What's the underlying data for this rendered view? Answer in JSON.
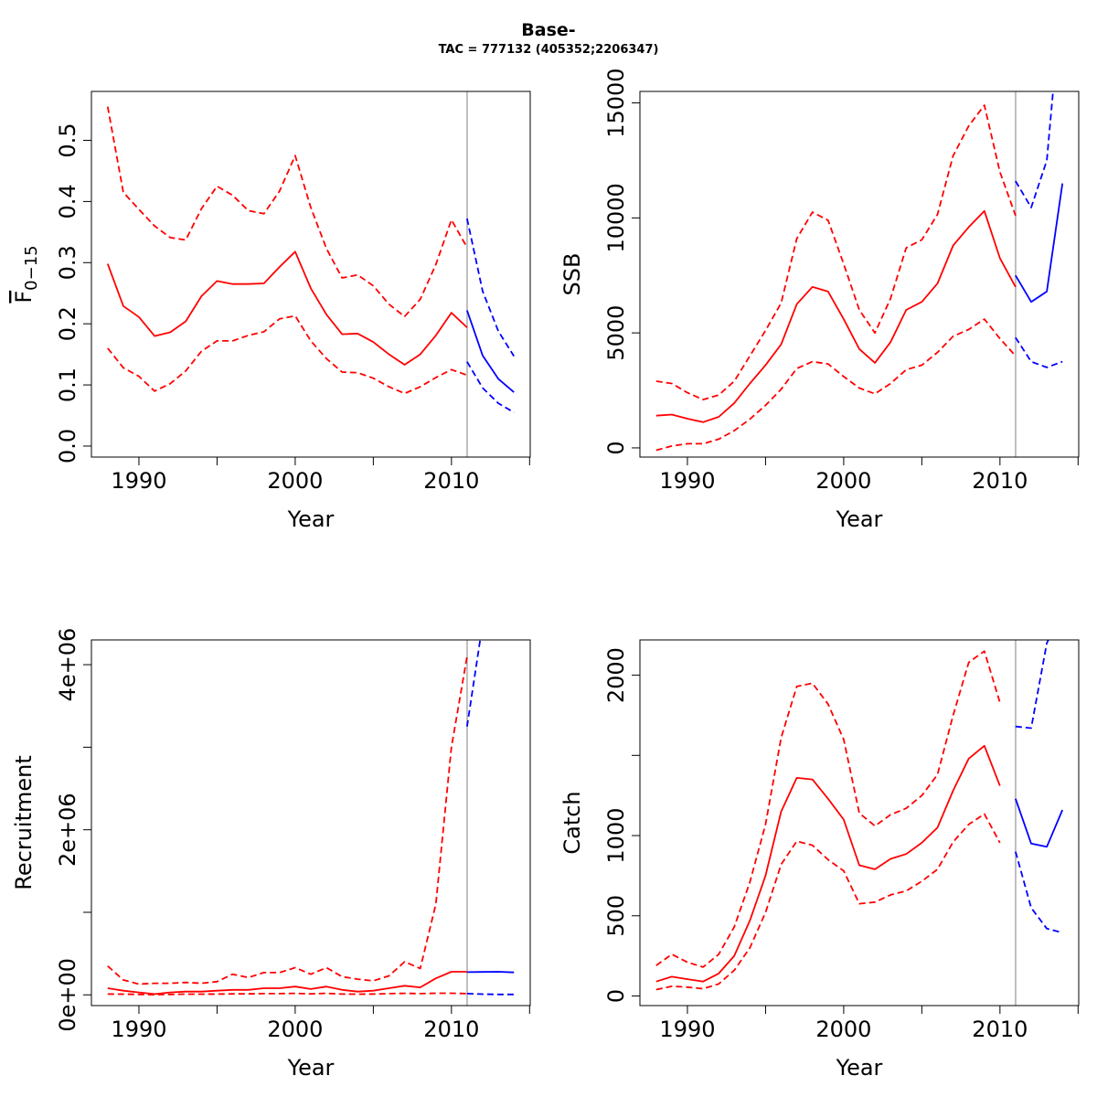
{
  "figure": {
    "title": "Base-",
    "subtitle": "TAC = 777132 (405352;2206347)"
  },
  "colors": {
    "historical": "#ff0000",
    "projection": "#0000ff",
    "divider": "#bebebe"
  },
  "chart_data": [
    {
      "id": "fbar",
      "type": "line",
      "title": "",
      "xlabel": "Year",
      "ylabel": "F̄0−15",
      "xlim": [
        1988,
        2014
      ],
      "ylim": [
        0.0,
        0.55
      ],
      "xticks": [
        1990,
        2000,
        2010
      ],
      "xticks_minor": [
        1995,
        2005,
        2015
      ],
      "yticks": [
        0.0,
        0.1,
        0.2,
        0.3,
        0.4,
        0.5
      ],
      "ytick_labels": [
        "0.0",
        "0.1",
        "0.2",
        "0.3",
        "0.4",
        "0.5"
      ],
      "vline": 2011,
      "grid": false,
      "series": [
        {
          "style": "solid",
          "color": "historical",
          "x": [
            1988,
            1989,
            1990,
            1991,
            1992,
            1993,
            1994,
            1995,
            1996,
            1997,
            1998,
            1999,
            2000,
            2001,
            2002,
            2003,
            2004,
            2005,
            2006,
            2007,
            2008,
            2009,
            2010,
            2011
          ],
          "y": [
            0.298,
            0.229,
            0.211,
            0.18,
            0.186,
            0.204,
            0.245,
            0.27,
            0.265,
            0.265,
            0.266,
            0.293,
            0.318,
            0.258,
            0.215,
            0.183,
            0.184,
            0.17,
            0.15,
            0.133,
            0.15,
            0.181,
            0.218,
            0.194
          ]
        },
        {
          "style": "dashed",
          "color": "historical",
          "x": [
            1988,
            1989,
            1990,
            1991,
            1992,
            1993,
            1994,
            1995,
            1996,
            1997,
            1998,
            1999,
            2000,
            2001,
            2002,
            2003,
            2004,
            2005,
            2006,
            2007,
            2008,
            2009,
            2010,
            2011
          ],
          "y": [
            0.555,
            0.415,
            0.387,
            0.36,
            0.341,
            0.337,
            0.388,
            0.425,
            0.41,
            0.385,
            0.38,
            0.417,
            0.475,
            0.39,
            0.323,
            0.275,
            0.28,
            0.262,
            0.232,
            0.212,
            0.24,
            0.297,
            0.37,
            0.325
          ]
        },
        {
          "style": "dashed",
          "color": "historical",
          "x": [
            1988,
            1989,
            1990,
            1991,
            1992,
            1993,
            1994,
            1995,
            1996,
            1997,
            1998,
            1999,
            2000,
            2001,
            2002,
            2003,
            2004,
            2005,
            2006,
            2007,
            2008,
            2009,
            2010,
            2011
          ],
          "y": [
            0.16,
            0.128,
            0.114,
            0.09,
            0.102,
            0.123,
            0.155,
            0.172,
            0.172,
            0.181,
            0.187,
            0.208,
            0.213,
            0.172,
            0.143,
            0.121,
            0.12,
            0.111,
            0.097,
            0.086,
            0.097,
            0.112,
            0.125,
            0.116
          ]
        },
        {
          "style": "solid",
          "color": "projection",
          "x": [
            2011,
            2012,
            2013,
            2014
          ],
          "y": [
            0.222,
            0.148,
            0.11,
            0.088
          ]
        },
        {
          "style": "dashed",
          "color": "projection",
          "x": [
            2011,
            2012,
            2013,
            2014
          ],
          "y": [
            0.372,
            0.253,
            0.188,
            0.147
          ]
        },
        {
          "style": "dashed",
          "color": "projection",
          "x": [
            2011,
            2012,
            2013,
            2014
          ],
          "y": [
            0.138,
            0.095,
            0.07,
            0.055
          ]
        }
      ]
    },
    {
      "id": "ssb",
      "type": "line",
      "title": "",
      "xlabel": "Year",
      "ylabel": "SSB",
      "xlim": [
        1988,
        2014
      ],
      "ylim": [
        0,
        15000
      ],
      "xticks": [
        1990,
        2000,
        2010
      ],
      "xticks_minor": [
        1995,
        2005,
        2015
      ],
      "yticks": [
        0,
        5000,
        10000,
        15000
      ],
      "ytick_labels": [
        "0",
        "5000",
        "10000",
        "15000"
      ],
      "vline": 2011,
      "grid": false,
      "series": [
        {
          "style": "solid",
          "color": "historical",
          "x": [
            1988,
            1989,
            1990,
            1991,
            1992,
            1993,
            1994,
            1995,
            1996,
            1997,
            1998,
            1999,
            2000,
            2001,
            2002,
            2003,
            2004,
            2005,
            2006,
            2007,
            2008,
            2009,
            2010,
            2011
          ],
          "y": [
            1400,
            1450,
            1270,
            1120,
            1350,
            1950,
            2800,
            3600,
            4500,
            6250,
            7000,
            6800,
            5600,
            4300,
            3700,
            4600,
            6000,
            6350,
            7150,
            8800,
            9600,
            10300,
            8250,
            7000
          ]
        },
        {
          "style": "dashed",
          "color": "historical",
          "x": [
            1988,
            1989,
            1990,
            1991,
            1992,
            1993,
            1994,
            1995,
            1996,
            1997,
            1998,
            1999,
            2000,
            2001,
            2002,
            2003,
            2004,
            2005,
            2006,
            2007,
            2008,
            2009,
            2010,
            2011
          ],
          "y": [
            2900,
            2800,
            2400,
            2100,
            2300,
            2900,
            4000,
            5100,
            6300,
            9100,
            10250,
            9900,
            8000,
            6000,
            5000,
            6500,
            8700,
            9050,
            10150,
            12700,
            14000,
            14900,
            12000,
            10100
          ]
        },
        {
          "style": "dashed",
          "color": "historical",
          "x": [
            1988,
            1989,
            1990,
            1991,
            1992,
            1993,
            1994,
            1995,
            1996,
            1997,
            1998,
            1999,
            2000,
            2001,
            2002,
            2003,
            2004,
            2005,
            2006,
            2007,
            2008,
            2009,
            2010,
            2011
          ],
          "y": [
            -100,
            80,
            180,
            180,
            380,
            750,
            1250,
            1850,
            2550,
            3450,
            3750,
            3650,
            3100,
            2600,
            2350,
            2800,
            3400,
            3600,
            4150,
            4850,
            5150,
            5600,
            4750,
            4000
          ]
        },
        {
          "style": "solid",
          "color": "projection",
          "x": [
            2011,
            2012,
            2013,
            2014
          ],
          "y": [
            7500,
            6350,
            6800,
            11500
          ]
        },
        {
          "style": "dashed",
          "color": "projection",
          "x": [
            2011,
            2012,
            2013,
            2014
          ],
          "y": [
            11600,
            10450,
            12500,
            20000
          ]
        },
        {
          "style": "dashed",
          "color": "projection",
          "x": [
            2011,
            2012,
            2013,
            2014
          ],
          "y": [
            4800,
            3750,
            3500,
            3750
          ]
        }
      ]
    },
    {
      "id": "recruitment",
      "type": "line",
      "title": "",
      "xlabel": "Year",
      "ylabel": "Recruitment",
      "xlim": [
        1988,
        2014
      ],
      "ylim": [
        0,
        4000000
      ],
      "xticks": [
        1990,
        2000,
        2010
      ],
      "xticks_minor": [
        1995,
        2005,
        2015
      ],
      "yticks": [
        0,
        2000000,
        4000000
      ],
      "ytick_labels": [
        "0e+00",
        "2e+06",
        "4e+06"
      ],
      "yticks_minor": [
        1000000,
        3000000
      ],
      "vline": 2011,
      "grid": false,
      "series": [
        {
          "style": "solid",
          "color": "historical",
          "x": [
            1988,
            1989,
            1990,
            1991,
            1992,
            1993,
            1994,
            1995,
            1996,
            1997,
            1998,
            1999,
            2000,
            2001,
            2002,
            2003,
            2004,
            2005,
            2006,
            2007,
            2008,
            2009,
            2010,
            2011
          ],
          "y": [
            80000,
            50000,
            30000,
            10000,
            30000,
            40000,
            40000,
            50000,
            60000,
            60000,
            80000,
            80000,
            100000,
            70000,
            100000,
            60000,
            40000,
            50000,
            80000,
            110000,
            90000,
            200000,
            280000,
            280000
          ]
        },
        {
          "style": "dashed",
          "color": "historical",
          "x": [
            1988,
            1989,
            1990,
            1991,
            1992,
            1993,
            1994,
            1995,
            1996,
            1997,
            1998,
            1999,
            2000,
            2001,
            2002,
            2003,
            2004,
            2005,
            2006,
            2007,
            2008,
            2009,
            2010,
            2011
          ],
          "y": [
            350000,
            180000,
            130000,
            140000,
            140000,
            150000,
            140000,
            160000,
            250000,
            210000,
            270000,
            270000,
            330000,
            250000,
            330000,
            220000,
            190000,
            170000,
            230000,
            400000,
            320000,
            1100000,
            3000000,
            4100000
          ]
        },
        {
          "style": "dashed",
          "color": "historical",
          "x": [
            1988,
            1989,
            1990,
            1991,
            1992,
            1993,
            1994,
            1995,
            1996,
            1997,
            1998,
            1999,
            2000,
            2001,
            2002,
            2003,
            2004,
            2005,
            2006,
            2007,
            2008,
            2009,
            2010,
            2011
          ],
          "y": [
            10000,
            8000,
            5000,
            2000,
            5000,
            8000,
            8000,
            10000,
            12000,
            12000,
            15000,
            15000,
            18000,
            12000,
            18000,
            10000,
            8000,
            10000,
            15000,
            18000,
            15000,
            20000,
            20000,
            15000
          ]
        },
        {
          "style": "solid",
          "color": "projection",
          "x": [
            2011,
            2012,
            2013,
            2014
          ],
          "y": [
            275000,
            278000,
            280000,
            272000
          ]
        },
        {
          "style": "dashed",
          "color": "projection",
          "x": [
            2011,
            2012,
            2013,
            2014
          ],
          "y": [
            3250000,
            4500000,
            4600000,
            4700000
          ]
        },
        {
          "style": "dashed",
          "color": "projection",
          "x": [
            2011,
            2012,
            2013,
            2014
          ],
          "y": [
            15000,
            8000,
            5000,
            5000
          ]
        }
      ]
    },
    {
      "id": "catch",
      "type": "line",
      "title": "",
      "xlabel": "Year",
      "ylabel": "Catch",
      "xlim": [
        1988,
        2014
      ],
      "ylim": [
        0,
        2100
      ],
      "xticks": [
        1990,
        2000,
        2010
      ],
      "xticks_minor": [
        1995,
        2005,
        2015
      ],
      "yticks": [
        0,
        500,
        1000,
        1500,
        2000
      ],
      "ytick_labels": [
        "0",
        "500",
        "1000",
        "",
        "2000"
      ],
      "vline": 2011,
      "grid": false,
      "series": [
        {
          "style": "solid",
          "color": "historical",
          "x": [
            1988,
            1989,
            1990,
            1991,
            1992,
            1993,
            1994,
            1995,
            1996,
            1997,
            1998,
            1999,
            2000,
            2001,
            2002,
            2003,
            2004,
            2005,
            2006,
            2007,
            2008,
            2009,
            2010
          ],
          "y": [
            90,
            120,
            105,
            90,
            140,
            250,
            470,
            750,
            1150,
            1360,
            1350,
            1230,
            1100,
            815,
            790,
            855,
            885,
            955,
            1050,
            1280,
            1480,
            1560,
            1310
          ]
        },
        {
          "style": "dashed",
          "color": "historical",
          "x": [
            1988,
            1989,
            1990,
            1991,
            1992,
            1993,
            1994,
            1995,
            1996,
            1997,
            1998,
            1999,
            2000,
            2001,
            2002,
            2003,
            2004,
            2005,
            2006,
            2007,
            2008,
            2009,
            2010
          ],
          "y": [
            190,
            260,
            210,
            180,
            260,
            430,
            710,
            1070,
            1610,
            1930,
            1950,
            1820,
            1600,
            1140,
            1060,
            1130,
            1170,
            1250,
            1380,
            1750,
            2080,
            2150,
            1830
          ]
        },
        {
          "style": "dashed",
          "color": "historical",
          "x": [
            1988,
            1989,
            1990,
            1991,
            1992,
            1993,
            1994,
            1995,
            1996,
            1997,
            1998,
            1999,
            2000,
            2001,
            2002,
            2003,
            2004,
            2005,
            2006,
            2007,
            2008,
            2009,
            2010
          ],
          "y": [
            40,
            60,
            55,
            45,
            75,
            160,
            300,
            520,
            820,
            965,
            940,
            850,
            780,
            575,
            585,
            630,
            655,
            715,
            790,
            960,
            1070,
            1135,
            955
          ]
        },
        {
          "style": "solid",
          "color": "projection",
          "x": [
            2011,
            2012,
            2013,
            2014
          ],
          "y": [
            1230,
            950,
            930,
            1160
          ]
        },
        {
          "style": "dashed",
          "color": "projection",
          "x": [
            2011,
            2012,
            2013,
            2014
          ],
          "y": [
            1680,
            1670,
            2200,
            2400
          ]
        },
        {
          "style": "dashed",
          "color": "projection",
          "x": [
            2011,
            2012,
            2013,
            2014
          ],
          "y": [
            900,
            550,
            420,
            395
          ]
        }
      ]
    }
  ]
}
